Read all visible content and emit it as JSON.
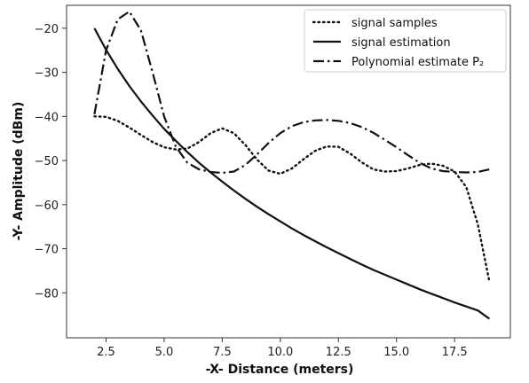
{
  "chart_data": {
    "type": "line",
    "xlabel": "-X-   Distance (meters)",
    "ylabel": "-Y-  Amplitude (dBm)",
    "xlim": [
      0.8,
      19.9
    ],
    "ylim": [
      -90.2,
      -14.8
    ],
    "xticks": [
      2.5,
      5.0,
      7.5,
      10.0,
      12.5,
      15.0,
      17.5
    ],
    "xtick_labels": [
      "2.5",
      "5.0",
      "7.5",
      "10.0",
      "12.5",
      "15.0",
      "17.5"
    ],
    "yticks": [
      -20,
      -30,
      -40,
      -50,
      -60,
      -70,
      -80
    ],
    "ytick_labels": [
      "−20",
      "−30",
      "−40",
      "−50",
      "−60",
      "−70",
      "−80"
    ],
    "grid": false,
    "legend_position": "top-right",
    "series": [
      {
        "name": "signal samples",
        "style": "dotted",
        "color": "#111111",
        "x": [
          2.0,
          2.5,
          3.0,
          3.5,
          4.0,
          4.5,
          5.0,
          5.5,
          6.0,
          6.5,
          7.0,
          7.5,
          8.0,
          8.5,
          9.0,
          9.5,
          10.0,
          10.5,
          11.0,
          11.5,
          12.0,
          12.5,
          13.0,
          13.5,
          14.0,
          14.5,
          15.0,
          15.5,
          16.0,
          16.5,
          17.0,
          17.5,
          18.0,
          18.5,
          19.0
        ],
        "y": [
          -40,
          -40.1,
          -41,
          -42.5,
          -44.2,
          -45.8,
          -47,
          -47.5,
          -47.3,
          -45.8,
          -43.8,
          -42.7,
          -43.8,
          -46.5,
          -49.8,
          -52.3,
          -53,
          -51.8,
          -49.7,
          -47.8,
          -46.8,
          -46.9,
          -48.4,
          -50.4,
          -52,
          -52.5,
          -52.4,
          -51.8,
          -51,
          -50.7,
          -51.2,
          -52.5,
          -56,
          -64.5,
          -77.5
        ]
      },
      {
        "name": "signal estimation",
        "style": "solid",
        "color": "#111111",
        "x": [
          2.0,
          2.5,
          3.0,
          3.5,
          4.0,
          4.5,
          5.0,
          5.5,
          6.0,
          6.5,
          7.0,
          7.5,
          8.0,
          8.5,
          9.0,
          9.5,
          10.0,
          10.5,
          11.0,
          11.5,
          12.0,
          12.5,
          13.0,
          13.5,
          14.0,
          14.5,
          15.0,
          15.5,
          16.0,
          16.5,
          17.0,
          17.5,
          18.0,
          18.5,
          19.0
        ],
        "y": [
          -20,
          -24.9,
          -29.2,
          -33.1,
          -36.6,
          -39.8,
          -42.8,
          -45.5,
          -48.1,
          -50.5,
          -52.7,
          -54.8,
          -56.8,
          -58.7,
          -60.5,
          -62.2,
          -63.8,
          -65.4,
          -66.9,
          -68.3,
          -69.7,
          -71,
          -72.3,
          -73.6,
          -74.8,
          -75.9,
          -77,
          -78.1,
          -79.2,
          -80.2,
          -81.2,
          -82.2,
          -83.1,
          -84,
          -85.9
        ]
      },
      {
        "name": "Polynomial estimate P₂",
        "style": "dashdot",
        "color": "#111111",
        "x": [
          2.0,
          2.5,
          3.0,
          3.5,
          4.0,
          4.5,
          5.0,
          5.5,
          6.0,
          6.5,
          7.0,
          7.5,
          8.0,
          8.5,
          9.0,
          9.5,
          10.0,
          10.5,
          11.0,
          11.5,
          12.0,
          12.5,
          13.0,
          13.5,
          14.0,
          14.5,
          15.0,
          15.5,
          16.0,
          16.5,
          17.0,
          17.5,
          18.0,
          18.5,
          19.0
        ],
        "y": [
          -39.5,
          -25,
          -18,
          -16.2,
          -20.5,
          -30,
          -40,
          -46.8,
          -50.5,
          -52,
          -52.6,
          -52.8,
          -52.5,
          -51,
          -48.6,
          -46,
          -43.8,
          -42.2,
          -41.3,
          -40.9,
          -40.8,
          -41,
          -41.5,
          -42.4,
          -43.7,
          -45.3,
          -47,
          -48.8,
          -50.5,
          -51.8,
          -52.4,
          -52.6,
          -52.7,
          -52.6,
          -52
        ]
      }
    ]
  }
}
